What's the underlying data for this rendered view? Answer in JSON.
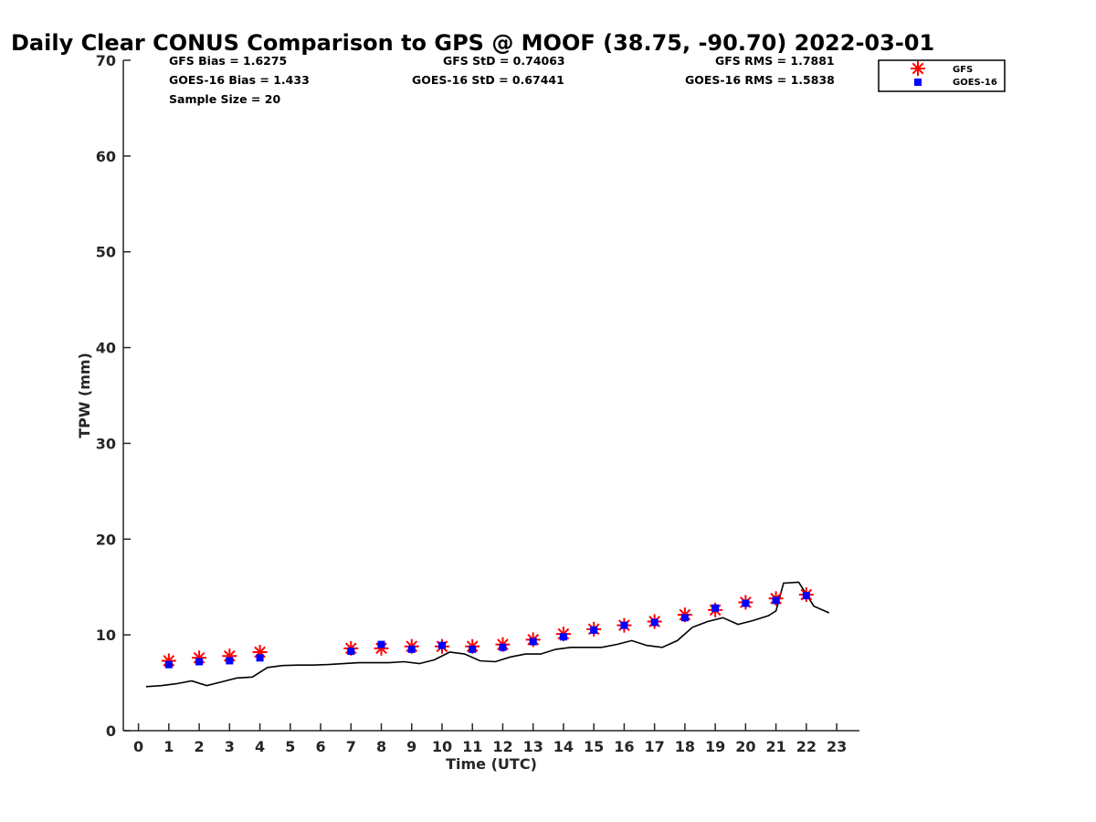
{
  "chart_data": {
    "type": "scatter",
    "title": "Daily Clear CONUS Comparison to GPS @ MOOF (38.75, -90.70) 2022-03-01",
    "xlabel": "Time (UTC)",
    "ylabel": "TPW (mm)",
    "xlim": [
      -0.5,
      23.75
    ],
    "ylim": [
      0,
      70
    ],
    "x_ticks": [
      0,
      1,
      2,
      3,
      4,
      5,
      6,
      7,
      8,
      9,
      10,
      11,
      12,
      13,
      14,
      15,
      16,
      17,
      18,
      19,
      20,
      21,
      22,
      23
    ],
    "y_ticks": [
      0,
      10,
      20,
      30,
      40,
      50,
      60,
      70
    ],
    "grid": false,
    "legend_position": "top-right",
    "stats": {
      "gfs_bias": "GFS Bias = 1.6275",
      "goes_bias": "GOES-16 Bias = 1.433",
      "sample_size": "Sample Size = 20",
      "gfs_std": "GFS StD = 0.74063",
      "goes_std": "GOES-16 StD = 0.67441",
      "gfs_rms": "GFS RMS = 1.7881",
      "goes_rms": "GOES-16 RMS = 1.5838"
    },
    "series": [
      {
        "name": "GFS",
        "marker": "asterisk",
        "color": "#ff0000",
        "x": [
          1,
          2,
          3,
          4,
          7,
          8,
          9,
          10,
          11,
          12,
          13,
          14,
          15,
          16,
          17,
          18,
          19,
          20,
          21,
          22
        ],
        "y": [
          7.3,
          7.6,
          7.8,
          8.2,
          8.6,
          8.6,
          8.8,
          8.8,
          8.8,
          9.0,
          9.5,
          10.1,
          10.6,
          11.0,
          11.4,
          12.1,
          12.6,
          13.4,
          13.8,
          14.2
        ]
      },
      {
        "name": "GOES-16",
        "marker": "square",
        "color": "#0000ff",
        "x": [
          1,
          2,
          3,
          4,
          7,
          8,
          9,
          10,
          11,
          12,
          13,
          14,
          15,
          16,
          17,
          18,
          19,
          20,
          21,
          22
        ],
        "y": [
          6.9,
          7.2,
          7.3,
          7.6,
          8.3,
          9.0,
          8.5,
          8.9,
          8.5,
          8.7,
          9.3,
          9.8,
          10.5,
          11.0,
          11.3,
          11.8,
          12.8,
          13.3,
          13.6,
          14.1
        ]
      },
      {
        "marker": "line",
        "color": "#000000",
        "x": [
          0.25,
          0.75,
          1.25,
          1.75,
          2.25,
          2.75,
          3.25,
          3.75,
          4.25,
          4.75,
          5.25,
          5.75,
          6.25,
          6.75,
          7.25,
          7.75,
          8.25,
          8.75,
          9.25,
          9.75,
          10.25,
          10.75,
          11.25,
          11.75,
          12.25,
          12.75,
          13.25,
          13.75,
          14.25,
          14.75,
          15.25,
          15.75,
          16.25,
          16.75,
          17.25,
          17.75,
          18.25,
          18.75,
          19.25,
          19.75,
          20.25,
          20.75,
          21.0,
          21.25,
          21.75,
          22.25,
          22.75
        ],
        "y": [
          4.6,
          4.7,
          4.9,
          5.2,
          4.7,
          5.1,
          5.5,
          5.6,
          6.6,
          6.8,
          6.85,
          6.85,
          6.9,
          7.0,
          7.1,
          7.1,
          7.1,
          7.2,
          7.0,
          7.4,
          8.2,
          8.0,
          7.3,
          7.2,
          7.7,
          8.0,
          8.0,
          8.5,
          8.7,
          8.7,
          8.7,
          9.0,
          9.4,
          8.9,
          8.7,
          9.4,
          10.8,
          11.4,
          11.8,
          11.1,
          11.5,
          12.0,
          12.5,
          15.4,
          15.5,
          13.0,
          12.3
        ]
      }
    ]
  }
}
